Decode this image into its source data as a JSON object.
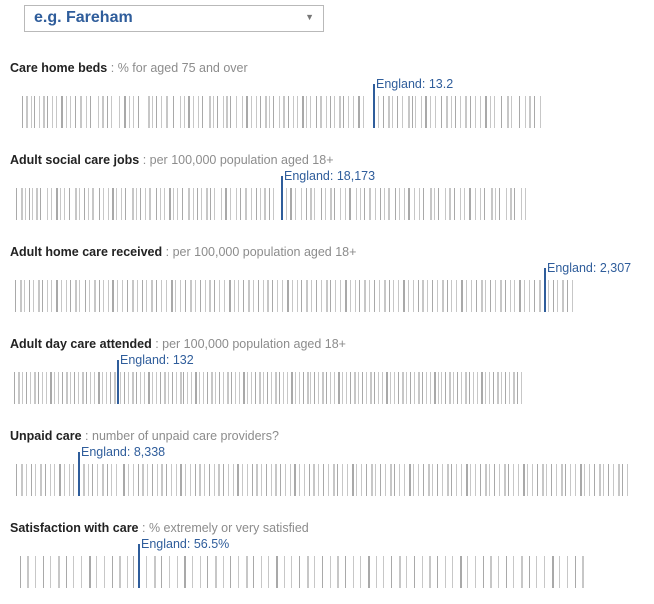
{
  "search": {
    "placeholder": "e.g. Fareham"
  },
  "icons": {
    "dropdown": "triangle-down-icon"
  },
  "colors": {
    "accent": "#2f5d9b",
    "bar": "#c7c7c7",
    "bar_dark": "#a9a9a9"
  },
  "chart_data": [
    {
      "type": "strip",
      "title": "Care home beds",
      "subtitle": ": % for aged 75 and over",
      "england": {
        "label": "England: 13.2",
        "value": 13.2
      },
      "xlim": [
        9.5,
        15.0
      ],
      "values": [
        9.6,
        9.64,
        9.69,
        9.73,
        9.78,
        9.82,
        9.86,
        9.91,
        9.95,
        10.0,
        10.05,
        10.1,
        10.15,
        10.2,
        10.26,
        10.3,
        10.38,
        10.42,
        10.47,
        10.52,
        10.6,
        10.65,
        10.7,
        10.74,
        10.79,
        10.9,
        10.94,
        10.98,
        11.03,
        11.08,
        11.15,
        11.22,
        11.27,
        11.31,
        11.36,
        11.41,
        11.45,
        11.52,
        11.56,
        11.6,
        11.66,
        11.7,
        11.74,
        11.8,
        11.86,
        11.9,
        11.95,
        12.0,
        12.04,
        12.1,
        12.14,
        12.18,
        12.24,
        12.28,
        12.33,
        12.38,
        12.42,
        12.48,
        12.52,
        12.56,
        12.62,
        12.66,
        12.72,
        12.76,
        12.8,
        12.86,
        12.9,
        12.95,
        13.0,
        13.05,
        13.1,
        13.26,
        13.31,
        13.36,
        13.4,
        13.45,
        13.5,
        13.56,
        13.6,
        13.64,
        13.7,
        13.74,
        13.79,
        13.84,
        13.9,
        13.95,
        14.0,
        14.05,
        14.1,
        14.15,
        14.2,
        14.25,
        14.3,
        14.35,
        14.4,
        14.45,
        14.52,
        14.58,
        14.62,
        14.7,
        14.76,
        14.8,
        14.86,
        14.92
      ]
    },
    {
      "type": "strip",
      "title": "Adult social care jobs",
      "subtitle": ": per 100,000 population aged 18+",
      "england": {
        "label": "England: 18,173",
        "value": 18173
      },
      "xlim": [
        12000,
        24000
      ],
      "values": [
        12100,
        12200,
        12300,
        12400,
        12450,
        12550,
        12650,
        12800,
        12900,
        13000,
        13100,
        13200,
        13300,
        13450,
        13550,
        13650,
        13750,
        13850,
        14000,
        14100,
        14200,
        14300,
        14400,
        14500,
        14600,
        14750,
        14850,
        14950,
        15050,
        15150,
        15300,
        15400,
        15500,
        15600,
        15700,
        15800,
        15900,
        16050,
        16150,
        16250,
        16350,
        16450,
        16550,
        16650,
        16800,
        16900,
        17000,
        17150,
        17250,
        17350,
        17500,
        17600,
        17700,
        17800,
        17900,
        18000,
        18300,
        18400,
        18500,
        18650,
        18750,
        18850,
        18950,
        19100,
        19200,
        19300,
        19400,
        19550,
        19650,
        19750,
        19900,
        20000,
        20100,
        20200,
        20350,
        20450,
        20550,
        20650,
        20800,
        20900,
        21000,
        21100,
        21250,
        21350,
        21450,
        21600,
        21700,
        21800,
        21950,
        22050,
        22150,
        22300,
        22400,
        22500,
        22650,
        22750,
        22850,
        23000,
        23100,
        23200,
        23350,
        23450,
        23550,
        23700,
        23800
      ]
    },
    {
      "type": "strip",
      "title": "Adult home care received",
      "subtitle": ": per 100,000 population aged 18+",
      "england": {
        "label": "England: 2,307",
        "value": 2307
      },
      "xlim": [
        550,
        2420
      ],
      "values": [
        560,
        575,
        590,
        606,
        620,
        636,
        650,
        666,
        680,
        696,
        712,
        728,
        742,
        758,
        772,
        790,
        805,
        820,
        836,
        850,
        866,
        882,
        898,
        914,
        930,
        946,
        962,
        978,
        994,
        1010,
        1026,
        1042,
        1058,
        1074,
        1090,
        1106,
        1122,
        1138,
        1154,
        1170,
        1186,
        1202,
        1218,
        1234,
        1250,
        1266,
        1282,
        1298,
        1314,
        1330,
        1346,
        1362,
        1378,
        1394,
        1410,
        1426,
        1442,
        1458,
        1474,
        1490,
        1506,
        1522,
        1538,
        1554,
        1570,
        1586,
        1602,
        1618,
        1634,
        1650,
        1666,
        1682,
        1698,
        1714,
        1730,
        1746,
        1762,
        1778,
        1794,
        1810,
        1826,
        1842,
        1858,
        1874,
        1890,
        1906,
        1922,
        1938,
        1954,
        1970,
        1986,
        2002,
        2018,
        2034,
        2050,
        2066,
        2082,
        2098,
        2114,
        2130,
        2146,
        2162,
        2178,
        2194,
        2210,
        2226,
        2242,
        2258,
        2274,
        2290,
        2320,
        2336,
        2352,
        2368,
        2384,
        2400
      ]
    },
    {
      "type": "strip",
      "title": "Adult day care attended",
      "subtitle": ": per 100,000 population aged 18+",
      "england": {
        "label": "England: 132",
        "value": 132
      },
      "xlim": [
        0,
        650
      ],
      "values": [
        3,
        8,
        13,
        18,
        23,
        28,
        33,
        38,
        43,
        48,
        53,
        58,
        63,
        68,
        73,
        78,
        83,
        88,
        93,
        98,
        103,
        108,
        113,
        118,
        123,
        128,
        136,
        141,
        146,
        151,
        156,
        161,
        166,
        171,
        176,
        181,
        186,
        191,
        196,
        201,
        206,
        211,
        216,
        221,
        226,
        231,
        236,
        241,
        246,
        251,
        256,
        261,
        266,
        271,
        276,
        281,
        286,
        291,
        296,
        301,
        306,
        311,
        316,
        321,
        326,
        331,
        336,
        341,
        346,
        351,
        356,
        361,
        366,
        371,
        376,
        381,
        386,
        391,
        396,
        401,
        406,
        411,
        416,
        421,
        426,
        431,
        436,
        441,
        446,
        451,
        456,
        461,
        466,
        471,
        476,
        481,
        486,
        491,
        496,
        501,
        506,
        511,
        516,
        521,
        526,
        531,
        536,
        541,
        546,
        551,
        556,
        561,
        566,
        571,
        576,
        581,
        586,
        591,
        596,
        601,
        606,
        611,
        616,
        621,
        626,
        631,
        636,
        641
      ]
    },
    {
      "type": "strip",
      "title": "Unpaid care",
      "subtitle": ": number of unpaid care providers?",
      "england": {
        "label": "England: 8,338",
        "value": 8338
      },
      "xlim": [
        7000,
        20000
      ],
      "values": [
        7050,
        7150,
        7250,
        7350,
        7450,
        7550,
        7650,
        7750,
        7850,
        7950,
        8050,
        8150,
        8250,
        8450,
        8550,
        8650,
        8750,
        8850,
        8950,
        9050,
        9150,
        9300,
        9400,
        9500,
        9600,
        9700,
        9800,
        9900,
        10000,
        10100,
        10200,
        10300,
        10400,
        10500,
        10600,
        10700,
        10800,
        10900,
        11000,
        11100,
        11200,
        11300,
        11400,
        11500,
        11600,
        11700,
        11800,
        11900,
        12000,
        12100,
        12200,
        12300,
        12400,
        12500,
        12600,
        12700,
        12800,
        12900,
        13000,
        13100,
        13200,
        13300,
        13400,
        13500,
        13600,
        13700,
        13800,
        13900,
        14000,
        14100,
        14200,
        14300,
        14400,
        14500,
        14600,
        14700,
        14800,
        14900,
        15000,
        15100,
        15200,
        15300,
        15400,
        15500,
        15600,
        15700,
        15800,
        15900,
        16000,
        16100,
        16200,
        16300,
        16400,
        16500,
        16600,
        16700,
        16800,
        16900,
        17000,
        17100,
        17200,
        17300,
        17400,
        17500,
        17600,
        17700,
        17800,
        17900,
        18000,
        18100,
        18200,
        18300,
        18400,
        18500,
        18600,
        18700,
        18800,
        18900,
        19000,
        19100,
        19200,
        19300,
        19400,
        19500,
        19600,
        19700,
        19800,
        19900
      ]
    },
    {
      "type": "strip",
      "title": "Satisfaction with care",
      "subtitle": ": % extremely or very satisfied",
      "england": {
        "label": "England: 56.5%",
        "value": 56.5
      },
      "xlim": [
        50,
        80
      ],
      "values": [
        50.3,
        50.7,
        51.1,
        51.5,
        51.9,
        52.3,
        52.7,
        53.1,
        53.5,
        53.9,
        54.3,
        54.7,
        55.1,
        55.5,
        55.9,
        56.2,
        56.9,
        57.3,
        57.7,
        58.1,
        58.5,
        58.9,
        59.3,
        59.7,
        60.1,
        60.5,
        60.9,
        61.3,
        61.7,
        62.1,
        62.5,
        62.9,
        63.3,
        63.7,
        64.1,
        64.5,
        64.9,
        65.3,
        65.7,
        66.1,
        66.5,
        66.9,
        67.3,
        67.7,
        68.1,
        68.5,
        68.9,
        69.3,
        69.7,
        70.1,
        70.5,
        70.9,
        71.3,
        71.7,
        72.1,
        72.5,
        72.9,
        73.3,
        73.7,
        74.1,
        74.5,
        74.9,
        75.3,
        75.7,
        76.1,
        76.5,
        76.9,
        77.3,
        77.7,
        78.1,
        78.5,
        78.9,
        79.3,
        79.7
      ]
    }
  ]
}
